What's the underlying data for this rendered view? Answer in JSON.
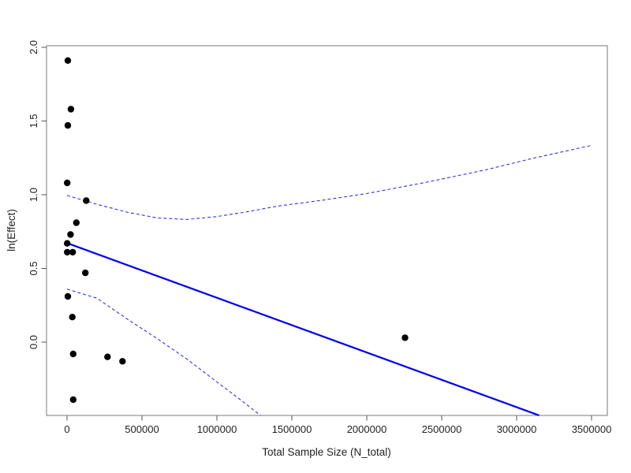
{
  "chart_data": {
    "type": "scatter",
    "title": "",
    "xlabel": "Total Sample Size (N_total)",
    "ylabel": "ln(Effect)",
    "xlim": [
      0,
      3500000
    ],
    "ylim": [
      -0.5,
      2.0
    ],
    "grid": false,
    "legend": "none",
    "x_axis": {
      "tick_values": [
        0,
        500000,
        1000000,
        1500000,
        2000000,
        2500000,
        3000000,
        3500000
      ],
      "tick_labels": [
        "0",
        "500000",
        "1000000",
        "1500000",
        "2000000",
        "2500000",
        "3000000",
        "3500000"
      ]
    },
    "y_axis": {
      "tick_values": [
        0.0,
        0.5,
        1.0,
        1.5,
        2.0
      ],
      "tick_labels": [
        "0.0",
        "0.5",
        "1.0",
        "1.5",
        "2.0"
      ]
    },
    "points": [
      [
        5000,
        1.91
      ],
      [
        26000,
        1.58
      ],
      [
        5000,
        1.47
      ],
      [
        1000,
        1.08
      ],
      [
        128000,
        0.96
      ],
      [
        62000,
        0.81
      ],
      [
        23000,
        0.73
      ],
      [
        1000,
        0.67
      ],
      [
        1000,
        0.61
      ],
      [
        38000,
        0.61
      ],
      [
        122000,
        0.47
      ],
      [
        5000,
        0.31
      ],
      [
        35000,
        0.17
      ],
      [
        41000,
        -0.08
      ],
      [
        270000,
        -0.1
      ],
      [
        370000,
        -0.13
      ],
      [
        41000,
        -0.39
      ],
      [
        2255000,
        0.03
      ]
    ],
    "regression_line": [
      [
        0,
        0.672
      ],
      [
        3150000,
        -0.497
      ]
    ],
    "confidence_band_upper": [
      [
        0,
        0.995
      ],
      [
        200000,
        0.935
      ],
      [
        400000,
        0.882
      ],
      [
        600000,
        0.843
      ],
      [
        800000,
        0.832
      ],
      [
        1000000,
        0.852
      ],
      [
        1200000,
        0.884
      ],
      [
        1400000,
        0.922
      ],
      [
        1700000,
        0.962
      ],
      [
        2000000,
        1.008
      ],
      [
        2400000,
        1.085
      ],
      [
        2800000,
        1.17
      ],
      [
        3100000,
        1.245
      ],
      [
        3500000,
        1.335
      ]
    ],
    "confidence_band_lower": [
      [
        0,
        0.36
      ],
      [
        200000,
        0.298
      ],
      [
        400000,
        0.158
      ],
      [
        600000,
        0.025
      ],
      [
        800000,
        -0.115
      ],
      [
        1000000,
        -0.27
      ],
      [
        1150000,
        -0.385
      ],
      [
        1290000,
        -0.497
      ]
    ],
    "colors": {
      "point": "#000000",
      "regression_line": "#0000ee",
      "confidence_band": "#3333ee",
      "box": "#7a7a7a",
      "tick": "#555555",
      "text": "#222222",
      "background": "#ffffff"
    }
  }
}
